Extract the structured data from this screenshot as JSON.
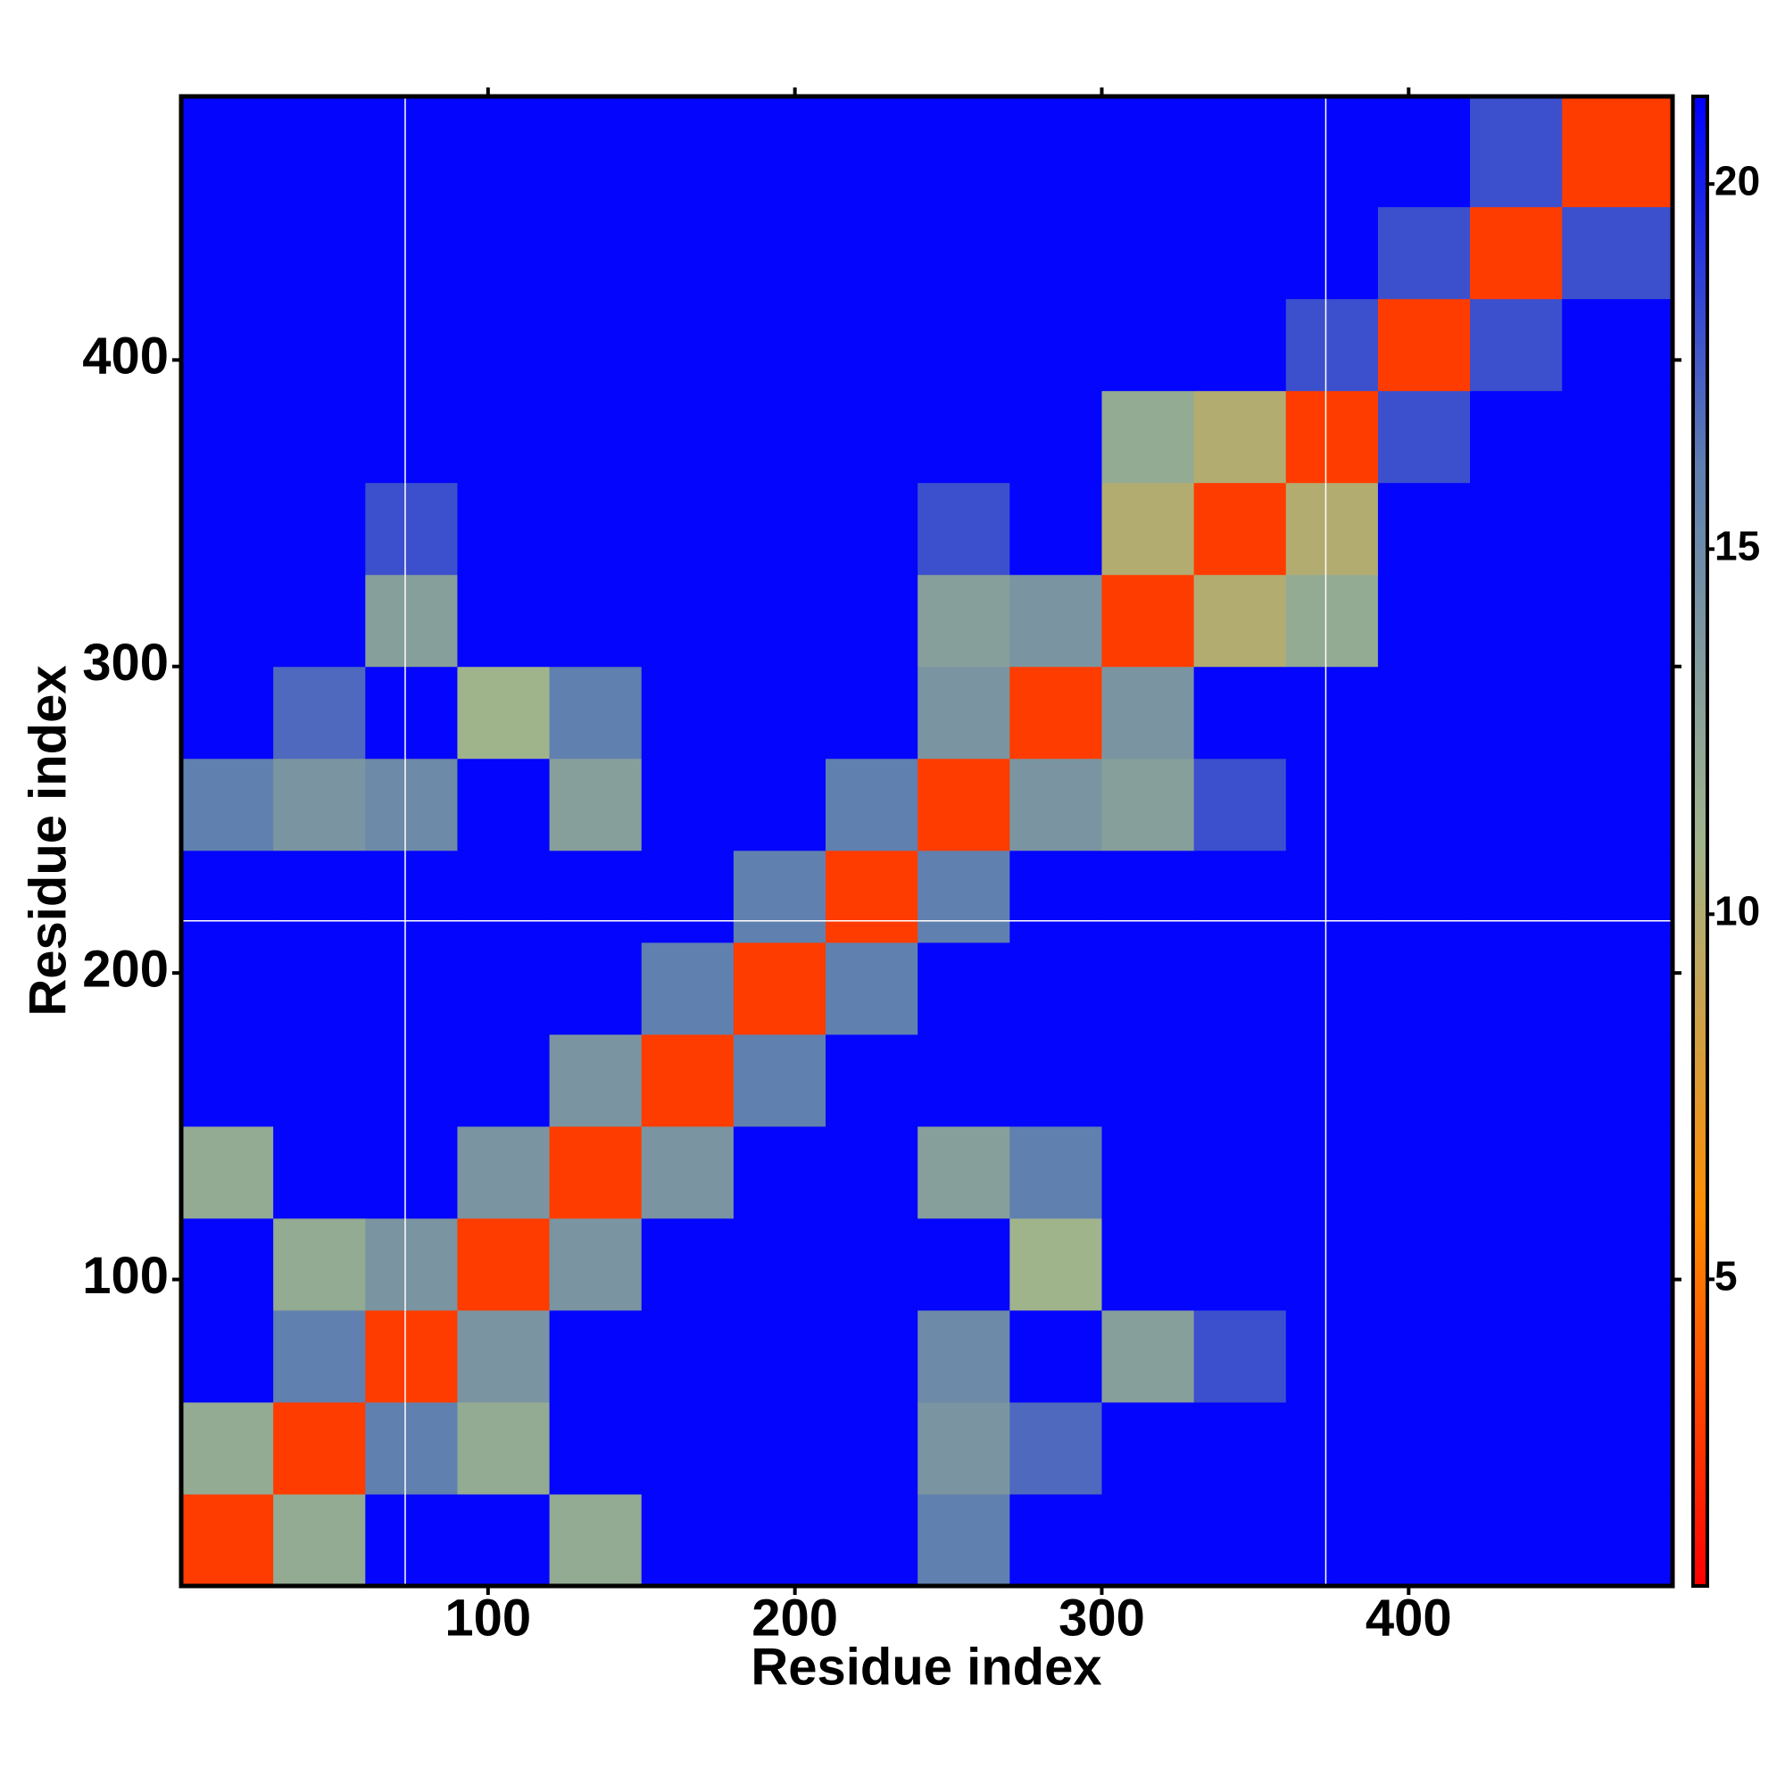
{
  "chart_data": {
    "type": "heatmap",
    "xlabel": "Residue index",
    "ylabel": "Residue index",
    "xlim": [
      0,
      486
    ],
    "ylim": [
      0,
      486
    ],
    "xticks": [
      100,
      200,
      300,
      400
    ],
    "yticks": [
      100,
      200,
      300,
      400
    ],
    "xbins": [
      0,
      30,
      60,
      90,
      120,
      150,
      180,
      210,
      240,
      270,
      300,
      330,
      360,
      390,
      420,
      450,
      486
    ],
    "ybins": [
      0,
      30,
      60,
      90,
      120,
      150,
      180,
      210,
      240,
      270,
      300,
      330,
      360,
      390,
      420,
      450,
      486
    ],
    "z": [
      [
        3,
        12,
        21,
        21,
        12,
        21,
        21,
        21,
        16,
        21,
        21,
        21,
        21,
        21,
        21,
        21
      ],
      [
        12,
        3,
        16,
        12,
        21,
        21,
        21,
        21,
        14,
        17,
        21,
        21,
        21,
        21,
        21,
        21
      ],
      [
        21,
        16,
        3,
        14,
        21,
        21,
        21,
        21,
        15,
        21,
        13,
        18,
        21,
        21,
        21,
        21
      ],
      [
        21,
        12,
        14,
        3,
        14,
        21,
        21,
        21,
        21,
        11,
        21,
        21,
        21,
        21,
        21,
        21
      ],
      [
        12,
        21,
        21,
        14,
        3,
        14,
        21,
        21,
        13,
        16,
        21,
        21,
        21,
        21,
        21,
        21
      ],
      [
        21,
        21,
        21,
        21,
        14,
        3,
        16,
        21,
        21,
        21,
        21,
        21,
        21,
        21,
        21,
        21
      ],
      [
        21,
        21,
        21,
        21,
        21,
        16,
        3,
        16,
        21,
        21,
        21,
        21,
        21,
        21,
        21,
        21
      ],
      [
        21,
        21,
        21,
        21,
        21,
        21,
        16,
        3,
        16,
        21,
        21,
        21,
        21,
        21,
        21,
        21
      ],
      [
        16,
        14,
        15,
        21,
        13,
        21,
        21,
        16,
        3,
        14,
        13,
        18,
        21,
        21,
        21,
        21
      ],
      [
        21,
        17,
        21,
        11,
        16,
        21,
        21,
        21,
        14,
        3,
        14,
        21,
        21,
        21,
        21,
        21
      ],
      [
        21,
        21,
        13,
        21,
        21,
        21,
        21,
        21,
        13,
        14,
        3,
        10,
        12,
        21,
        21,
        21
      ],
      [
        21,
        21,
        18,
        21,
        21,
        21,
        21,
        21,
        18,
        21,
        10,
        3,
        10,
        21,
        21,
        21
      ],
      [
        21,
        21,
        21,
        21,
        21,
        21,
        21,
        21,
        21,
        21,
        12,
        10,
        3,
        18,
        21,
        21
      ],
      [
        21,
        21,
        21,
        21,
        21,
        21,
        21,
        21,
        21,
        21,
        21,
        21,
        18,
        3,
        18,
        21
      ],
      [
        21,
        21,
        21,
        21,
        21,
        21,
        21,
        21,
        21,
        21,
        21,
        21,
        21,
        18,
        3,
        18
      ],
      [
        21,
        21,
        21,
        21,
        21,
        21,
        21,
        21,
        21,
        21,
        21,
        21,
        21,
        21,
        18,
        3
      ]
    ],
    "zlim": [
      0.8,
      21.2
    ],
    "zticks": [
      5,
      10,
      15,
      20
    ],
    "colorscale": [
      "#ff0000",
      "#ff8c00",
      "#a0b48c",
      "#5f7fb0",
      "#0000ff"
    ],
    "vlines": [
      73,
      373
    ],
    "hlines": [
      217
    ]
  }
}
